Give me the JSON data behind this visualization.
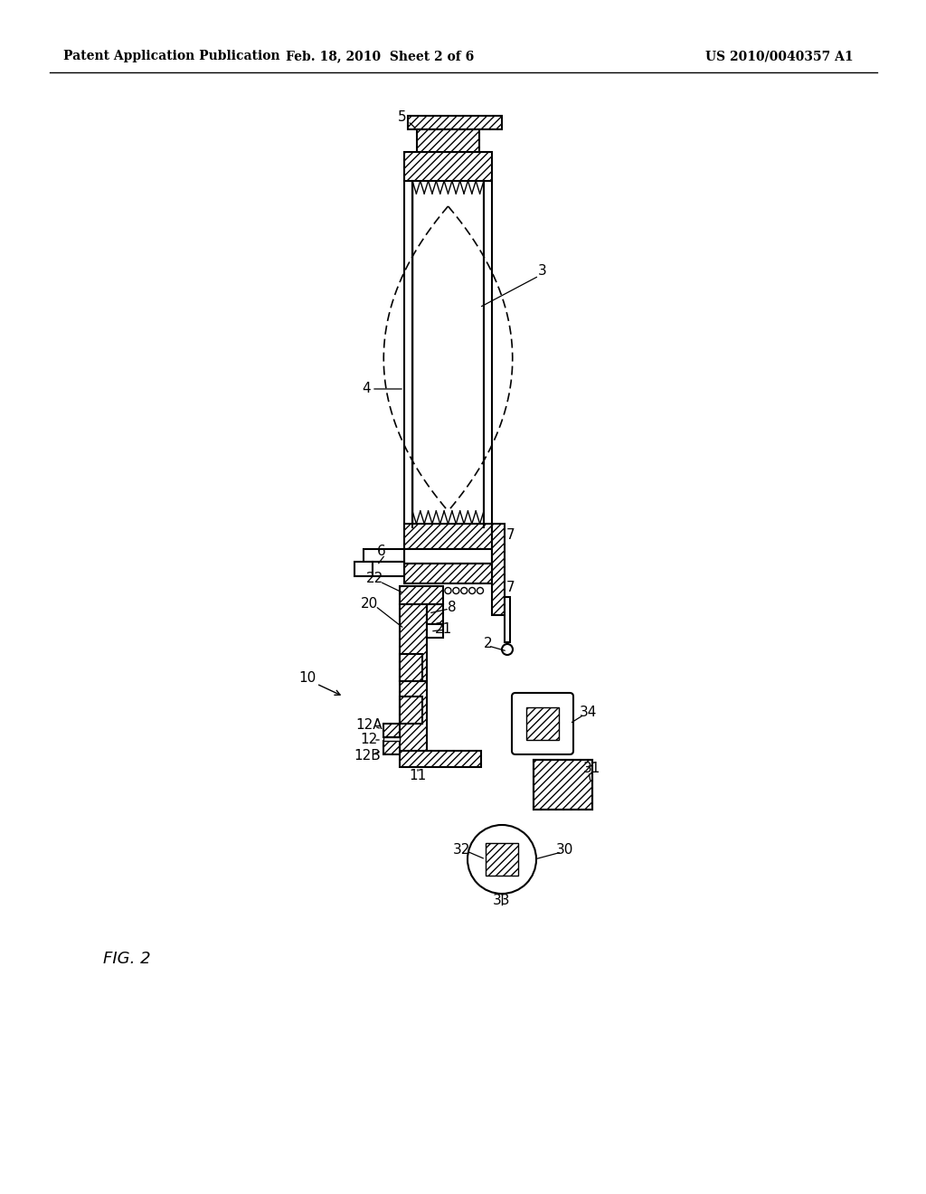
{
  "title_left": "Patent Application Publication",
  "title_mid": "Feb. 18, 2010  Sheet 2 of 6",
  "title_right": "US 2010/0040357 A1",
  "fig_label": "FIG. 2",
  "background": "#ffffff"
}
